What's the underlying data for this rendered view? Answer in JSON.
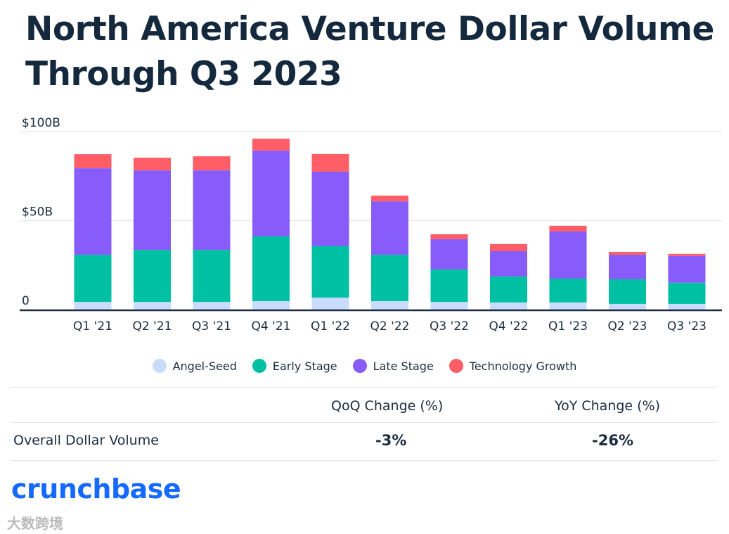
{
  "title_line1": "North America Venture Dollar Volume",
  "title_line2": "Through Q3 2023",
  "chart_data": {
    "type": "bar",
    "stacked": true,
    "title": "North America Venture Dollar Volume Through Q3 2023",
    "categories": [
      "Q1 '21",
      "Q2 '21",
      "Q3 '21",
      "Q4 '21",
      "Q1 '22",
      "Q2 '22",
      "Q3 '22",
      "Q4 '22",
      "Q1 '23",
      "Q2 '23",
      "Q3 '23"
    ],
    "series": [
      {
        "name": "Angel-Seed",
        "color": "#c9dcfb",
        "values": [
          4.3,
          4.3,
          4.3,
          4.7,
          6.7,
          4.7,
          4.3,
          4.0,
          4.0,
          3.2,
          3.2
        ]
      },
      {
        "name": "Early Stage",
        "color": "#00c0a3",
        "values": [
          26.5,
          29.2,
          29.2,
          36.4,
          28.9,
          26.1,
          18.2,
          14.6,
          13.4,
          13.8,
          11.9
        ]
      },
      {
        "name": "Late Stage",
        "color": "#875cfb",
        "values": [
          48.6,
          44.7,
          44.7,
          48.2,
          41.9,
          30.0,
          17.0,
          14.2,
          26.5,
          13.8,
          15.0
        ]
      },
      {
        "name": "Technology Growth",
        "color": "#ff5e66",
        "values": [
          7.9,
          7.1,
          7.9,
          6.7,
          9.9,
          3.2,
          2.8,
          4.0,
          3.2,
          1.6,
          1.2
        ]
      }
    ],
    "yticks": [
      {
        "value": 0,
        "label": "0"
      },
      {
        "value": 50,
        "label": "$50B"
      },
      {
        "value": 100,
        "label": "$100B"
      }
    ],
    "ylim": [
      0,
      100
    ],
    "xlabel": "",
    "ylabel": "",
    "grid": true,
    "legend_position": "bottom"
  },
  "table": {
    "headers": [
      "",
      "QoQ Change (%)",
      "YoY Change (%)"
    ],
    "rows": [
      {
        "label": "Overall Dollar Volume",
        "qoq": "-3%",
        "yoy": "-26%"
      }
    ]
  },
  "logo": "crunchbase",
  "watermark": "大数跨境"
}
